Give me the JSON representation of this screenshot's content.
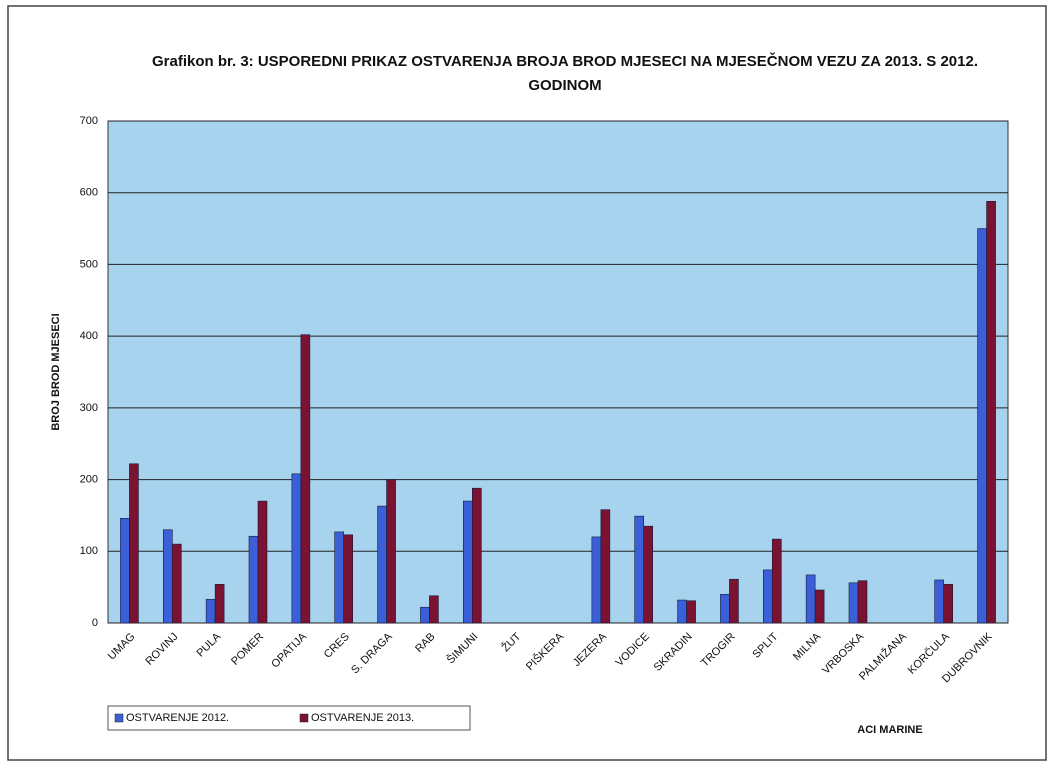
{
  "chart_data": {
    "type": "bar",
    "title": "Grafikon br. 3: USPOREDNI PRIKAZ OSTVARENJA BROJA BROD MJESECI NA MJESEČNOM VEZU ZA 2013. S 2012. GODINOM",
    "x_label": "ACI MARINE",
    "y_label": "BROJ BROD MJESECI",
    "categories": [
      "UMAG",
      "ROVINJ",
      "PULA",
      "POMER",
      "OPATIJA",
      "CRES",
      "S. DRAGA",
      "RAB",
      "ŠIMUNI",
      "ŽUT",
      "PIŠKERA",
      "JEZERA",
      "VODICE",
      "SKRADIN",
      "TROGIR",
      "SPLIT",
      "MILNA",
      "VRBOSKA",
      "PALMIŽANA",
      "KORČULA",
      "DUBROVNIK"
    ],
    "series": [
      {
        "name": "OSTVARENJE 2012.",
        "color": "#3a5fd6",
        "values": [
          146,
          130,
          33,
          121,
          208,
          127,
          163,
          22,
          170,
          0,
          0,
          120,
          149,
          32,
          40,
          74,
          67,
          56,
          0,
          60,
          550
        ]
      },
      {
        "name": "OSTVARENJE 2013.",
        "color": "#7a1232",
        "values": [
          222,
          110,
          54,
          170,
          402,
          123,
          200,
          38,
          188,
          0,
          0,
          158,
          135,
          31,
          61,
          117,
          46,
          59,
          0,
          54,
          588
        ]
      }
    ],
    "ylim": [
      0,
      700
    ],
    "yticks": [
      0,
      100,
      200,
      300,
      400,
      500,
      600,
      700
    ],
    "grid": true,
    "legend": "bottom-left"
  }
}
